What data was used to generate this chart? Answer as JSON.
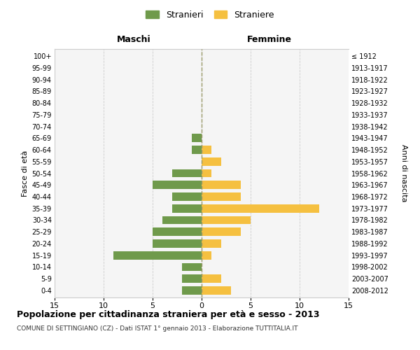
{
  "age_groups": [
    "0-4",
    "5-9",
    "10-14",
    "15-19",
    "20-24",
    "25-29",
    "30-34",
    "35-39",
    "40-44",
    "45-49",
    "50-54",
    "55-59",
    "60-64",
    "65-69",
    "70-74",
    "75-79",
    "80-84",
    "85-89",
    "90-94",
    "95-99",
    "100+"
  ],
  "birth_years": [
    "2008-2012",
    "2003-2007",
    "1998-2002",
    "1993-1997",
    "1988-1992",
    "1983-1987",
    "1978-1982",
    "1973-1977",
    "1968-1972",
    "1963-1967",
    "1958-1962",
    "1953-1957",
    "1948-1952",
    "1943-1947",
    "1938-1942",
    "1933-1937",
    "1928-1932",
    "1923-1927",
    "1918-1922",
    "1913-1917",
    "≤ 1912"
  ],
  "maschi": [
    2,
    2,
    2,
    9,
    5,
    5,
    4,
    3,
    3,
    5,
    3,
    0,
    1,
    1,
    0,
    0,
    0,
    0,
    0,
    0,
    0
  ],
  "femmine": [
    3,
    2,
    0,
    1,
    2,
    4,
    5,
    12,
    4,
    4,
    1,
    2,
    1,
    0,
    0,
    0,
    0,
    0,
    0,
    0,
    0
  ],
  "maschi_color": "#6f9a4b",
  "femmine_color": "#f5c040",
  "background_color": "#f5f5f5",
  "grid_color": "#cccccc",
  "center_line_color": "#999966",
  "title": "Popolazione per cittadinanza straniera per età e sesso - 2013",
  "subtitle": "COMUNE DI SETTINGIANO (CZ) - Dati ISTAT 1° gennaio 2013 - Elaborazione TUTTITALIA.IT",
  "xlabel_left": "Maschi",
  "xlabel_right": "Femmine",
  "ylabel_left": "Fasce di età",
  "ylabel_right": "Anni di nascita",
  "legend_maschi": "Stranieri",
  "legend_femmine": "Straniere",
  "xlim": 15
}
